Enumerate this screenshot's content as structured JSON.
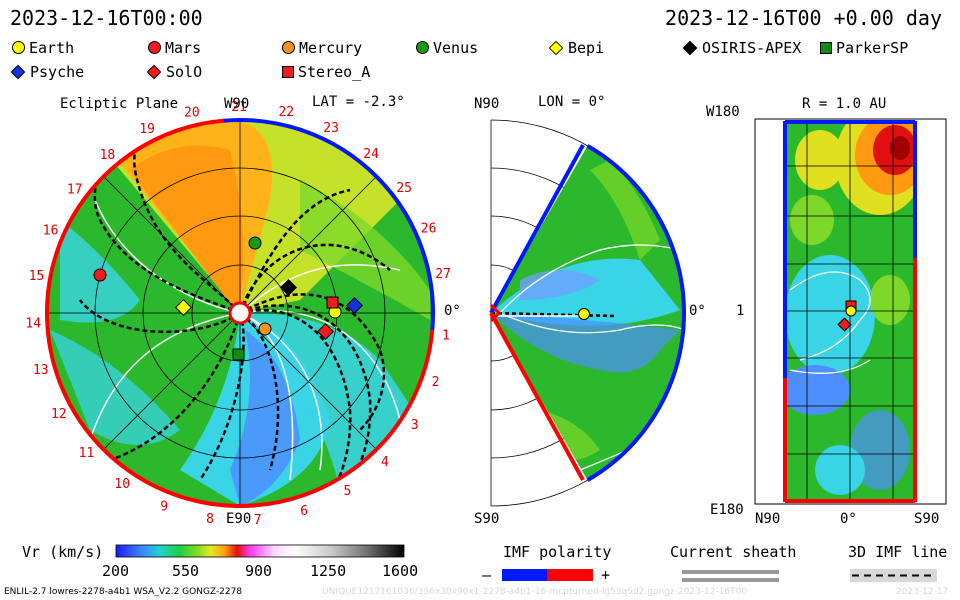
{
  "header": {
    "date_left": "2023-12-16T00:00",
    "date_right": "2023-12-16T00 +0.00 day"
  },
  "legend": [
    {
      "label": "Earth",
      "shape": "circle",
      "color": "#ffff00"
    },
    {
      "label": "Mars",
      "shape": "circle",
      "color": "#ee1c1c"
    },
    {
      "label": "Mercury",
      "shape": "circle",
      "color": "#f7941d"
    },
    {
      "label": "Venus",
      "shape": "circle",
      "color": "#169b16"
    },
    {
      "label": "Bepi",
      "shape": "diamond",
      "color": "#ffff00"
    },
    {
      "label": "OSIRIS-APEX",
      "shape": "diamond",
      "color": "#000000"
    },
    {
      "label": "ParkerSP",
      "shape": "square",
      "color": "#138a13"
    },
    {
      "label": "Psyche",
      "shape": "diamond",
      "color": "#1530e0"
    },
    {
      "label": "SolO",
      "shape": "diamond",
      "color": "#ee1c1c"
    },
    {
      "label": "Stereo_A",
      "shape": "square",
      "color": "#ee1c1c"
    }
  ],
  "ecliptic": {
    "title": "Ecliptic Plane",
    "lat": "LAT = -2.3°",
    "top_label": "W90",
    "bottom_label": "E90",
    "right_label": "0°",
    "rotation_labels": [
      "1",
      "2",
      "3",
      "4",
      "5",
      "6",
      "7",
      "8",
      "9",
      "10",
      "11",
      "12",
      "13",
      "14",
      "15",
      "16",
      "17",
      "18",
      "19",
      "20",
      "21",
      "22",
      "23",
      "24",
      "25",
      "26",
      "27"
    ]
  },
  "meridional": {
    "lon": "LON = 0°",
    "top_label": "N90",
    "bottom_label": "S90",
    "right_label": "0°"
  },
  "map": {
    "title": "R = 1.0 AU",
    "top_left": "W180",
    "bottom_left": "E180",
    "mid_left": "1",
    "bottom_labels": [
      "N90",
      "0°",
      "S90"
    ]
  },
  "colorbar": {
    "label": "Vr (km/s)",
    "ticks": [
      "200",
      "550",
      "900",
      "1250",
      "1600"
    ]
  },
  "imf": {
    "title": "IMF polarity",
    "minus": "–",
    "plus": "+"
  },
  "sheath": {
    "title": "Current sheath"
  },
  "imf3d": {
    "title": "3D IMF line"
  },
  "footer": {
    "left": "ENLIL-2.7 lowres-2278-a4b1 WSA_V2.2 GONGZ-2278",
    "watermark": "UNIQUE1217161036/356x30x90x1-2278-a4b1-16-mcpturned-lg53q5d2.gongz-2023-12-16T00",
    "right": "2023-12-17"
  },
  "chart_data": {
    "type": "heatmap",
    "variable": "Vr (km/s)",
    "color_range": [
      200,
      1600
    ],
    "colorbar_ticks": [
      200,
      550,
      900,
      1250,
      1600
    ],
    "panels": [
      "Ecliptic Plane LAT = -2.3°",
      "Meridional LON = 0°",
      "R = 1.0 AU map"
    ],
    "time": "2023-12-16T00 +0.00 day"
  },
  "colors": {
    "imf_negative": "#0018ff",
    "imf_positive": "#ff0000"
  }
}
